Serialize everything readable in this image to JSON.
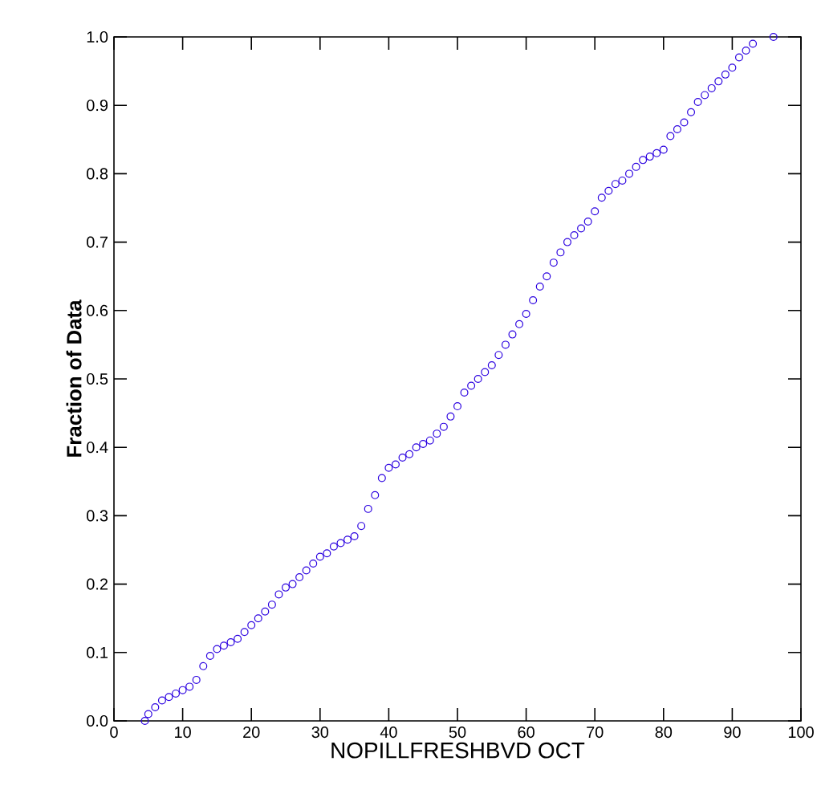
{
  "chart_data": {
    "type": "scatter",
    "xlabel": "NOPILLFRESHBVD  OCT",
    "ylabel": "Fraction of Data",
    "x": [
      4.5,
      5,
      6,
      7,
      8,
      9,
      10,
      11,
      12,
      13,
      14,
      15,
      16,
      17,
      18,
      19,
      20,
      21,
      22,
      23,
      24,
      25,
      26,
      27,
      28,
      29,
      30,
      31,
      32,
      33,
      34,
      35,
      36,
      37,
      38,
      39,
      40,
      41,
      42,
      43,
      44,
      45,
      46,
      47,
      48,
      49,
      50,
      51,
      52,
      53,
      54,
      55,
      56,
      57,
      58,
      59,
      60,
      61,
      62,
      63,
      64,
      65,
      66,
      67,
      68,
      69,
      70,
      71,
      72,
      73,
      74,
      75,
      76,
      77,
      78,
      79,
      80,
      81,
      82,
      83,
      84,
      85,
      86,
      87,
      88,
      89,
      90,
      91,
      92,
      93,
      96
    ],
    "values": [
      0,
      0.01,
      0.02,
      0.03,
      0.035,
      0.04,
      0.045,
      0.05,
      0.06,
      0.08,
      0.095,
      0.105,
      0.11,
      0.115,
      0.12,
      0.13,
      0.14,
      0.15,
      0.16,
      0.17,
      0.185,
      0.195,
      0.2,
      0.21,
      0.22,
      0.23,
      0.24,
      0.245,
      0.255,
      0.26,
      0.265,
      0.27,
      0.285,
      0.31,
      0.33,
      0.355,
      0.37,
      0.375,
      0.385,
      0.39,
      0.4,
      0.405,
      0.41,
      0.42,
      0.43,
      0.445,
      0.46,
      0.48,
      0.49,
      0.5,
      0.51,
      0.52,
      0.535,
      0.55,
      0.565,
      0.58,
      0.595,
      0.615,
      0.635,
      0.65,
      0.67,
      0.685,
      0.7,
      0.71,
      0.72,
      0.73,
      0.745,
      0.765,
      0.775,
      0.785,
      0.79,
      0.8,
      0.81,
      0.82,
      0.825,
      0.83,
      0.835,
      0.855,
      0.865,
      0.875,
      0.89,
      0.905,
      0.915,
      0.925,
      0.935,
      0.945,
      0.955,
      0.97,
      0.98,
      0.99,
      1.0
    ],
    "color": "#2a00e0",
    "marker": "circle",
    "xlim": [
      0,
      100
    ],
    "ylim": [
      0,
      1
    ],
    "xticks": [
      0,
      10,
      20,
      30,
      40,
      50,
      60,
      70,
      80,
      90,
      100
    ],
    "yticks": [
      {
        "value": 0,
        "label": "0.0"
      },
      0.1,
      0.2,
      0.3,
      0.4,
      0.5,
      0.6,
      0.7,
      0.8,
      0.9,
      {
        "value": 1,
        "label": "1.0"
      }
    ]
  }
}
